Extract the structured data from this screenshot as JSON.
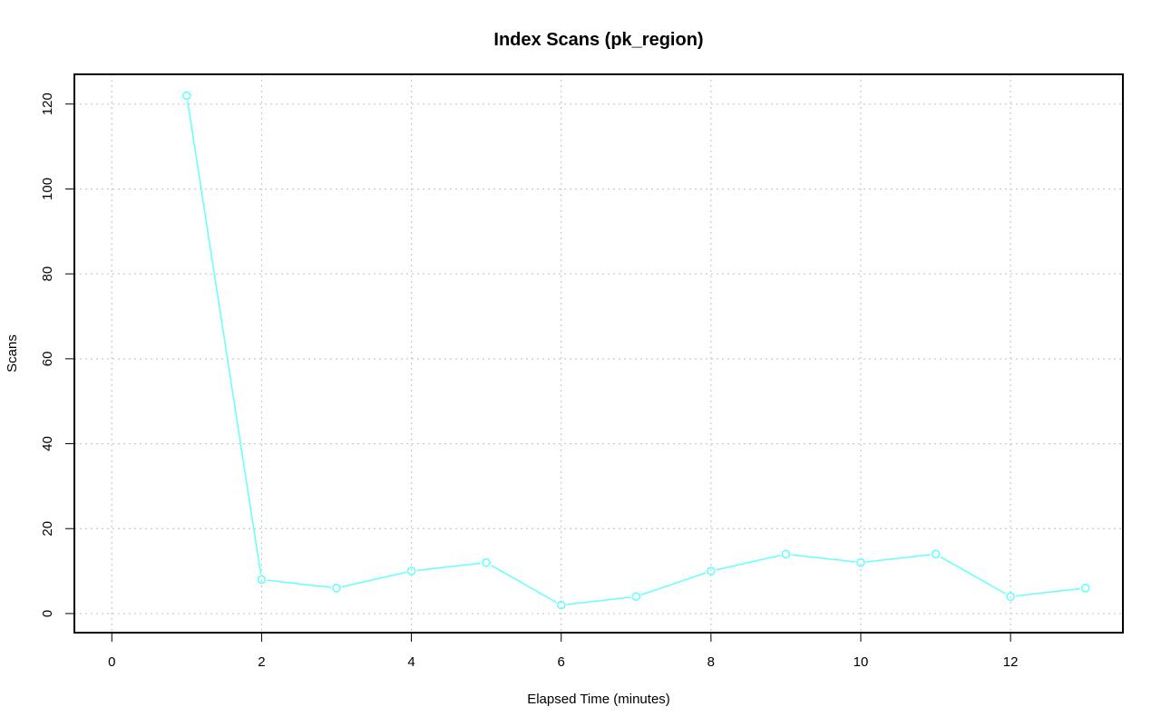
{
  "chart_data": {
    "type": "line",
    "title": "Index Scans (pk_region)",
    "xlabel": "Elapsed Time (minutes)",
    "ylabel": "Scans",
    "xlim": [
      -0.5,
      13.5
    ],
    "ylim": [
      -4.5,
      127
    ],
    "x_ticks": [
      0,
      2,
      4,
      6,
      8,
      10,
      12
    ],
    "y_ticks": [
      0,
      20,
      40,
      60,
      80,
      100,
      120
    ],
    "grid": true,
    "series": [
      {
        "color": "#66ffff",
        "marker": "open-circle",
        "x": [
          1,
          2,
          3,
          4,
          5,
          6,
          7,
          8,
          9,
          10,
          11,
          12,
          13
        ],
        "y": [
          122,
          8,
          6,
          10,
          12,
          2,
          4,
          10,
          14,
          12,
          14,
          4,
          6
        ]
      }
    ]
  }
}
